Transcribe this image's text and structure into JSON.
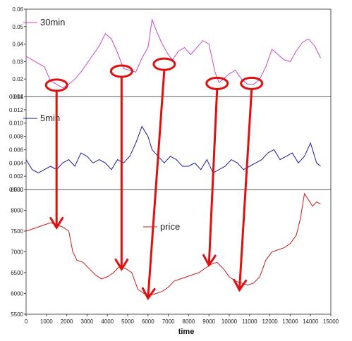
{
  "chart_data": [
    {
      "type": "line",
      "xlim": [
        0,
        15000
      ],
      "ylim": [
        0.01,
        0.06
      ],
      "yticks": [
        "0.01",
        "0.02",
        "0.03",
        "0.04",
        "0.05",
        "0.06"
      ],
      "legend_position": "top-left",
      "series": [
        {
          "name": "30min",
          "color": "#c848c8",
          "points": [
            [
              0,
              0.033
            ],
            [
              300,
              0.031
            ],
            [
              600,
              0.029
            ],
            [
              900,
              0.027
            ],
            [
              1200,
              0.019
            ],
            [
              1500,
              0.017
            ],
            [
              1800,
              0.015
            ],
            [
              2100,
              0.017
            ],
            [
              2400,
              0.02
            ],
            [
              2700,
              0.024
            ],
            [
              3000,
              0.029
            ],
            [
              3300,
              0.034
            ],
            [
              3600,
              0.039
            ],
            [
              3900,
              0.046
            ],
            [
              4200,
              0.043
            ],
            [
              4500,
              0.035
            ],
            [
              4800,
              0.026
            ],
            [
              5100,
              0.025
            ],
            [
              5400,
              0.024
            ],
            [
              5700,
              0.032
            ],
            [
              6000,
              0.038
            ],
            [
              6200,
              0.054
            ],
            [
              6400,
              0.048
            ],
            [
              6700,
              0.04
            ],
            [
              7000,
              0.034
            ],
            [
              7200,
              0.031
            ],
            [
              7500,
              0.036
            ],
            [
              7800,
              0.038
            ],
            [
              8100,
              0.034
            ],
            [
              8400,
              0.038
            ],
            [
              8700,
              0.042
            ],
            [
              9000,
              0.04
            ],
            [
              9300,
              0.024
            ],
            [
              9500,
              0.018
            ],
            [
              9700,
              0.02
            ],
            [
              10000,
              0.023
            ],
            [
              10300,
              0.025
            ],
            [
              10600,
              0.02
            ],
            [
              10900,
              0.017
            ],
            [
              11200,
              0.017
            ],
            [
              11500,
              0.02
            ],
            [
              11800,
              0.027
            ],
            [
              12100,
              0.037
            ],
            [
              12400,
              0.034
            ],
            [
              12700,
              0.031
            ],
            [
              13000,
              0.03
            ],
            [
              13300,
              0.036
            ],
            [
              13600,
              0.041
            ],
            [
              13900,
              0.043
            ],
            [
              14200,
              0.039
            ],
            [
              14500,
              0.032
            ]
          ]
        }
      ]
    },
    {
      "type": "line",
      "xlim": [
        0,
        15000
      ],
      "ylim": [
        0,
        0.014
      ],
      "yticks": [
        "0.000",
        "0.002",
        "0.004",
        "0.006",
        "0.008",
        "0.010",
        "0.012",
        "0.014"
      ],
      "legend_position": "top-left",
      "series": [
        {
          "name": "5min",
          "color": "#1a1aa0",
          "points": [
            [
              0,
              0.0045
            ],
            [
              300,
              0.003
            ],
            [
              600,
              0.0025
            ],
            [
              900,
              0.003
            ],
            [
              1200,
              0.0035
            ],
            [
              1500,
              0.003
            ],
            [
              1800,
              0.004
            ],
            [
              2100,
              0.0045
            ],
            [
              2400,
              0.0035
            ],
            [
              2700,
              0.0055
            ],
            [
              3000,
              0.005
            ],
            [
              3300,
              0.004
            ],
            [
              3600,
              0.0045
            ],
            [
              3900,
              0.004
            ],
            [
              4200,
              0.003
            ],
            [
              4500,
              0.0045
            ],
            [
              4800,
              0.004
            ],
            [
              5100,
              0.005
            ],
            [
              5400,
              0.007
            ],
            [
              5700,
              0.0095
            ],
            [
              6000,
              0.008
            ],
            [
              6200,
              0.006
            ],
            [
              6500,
              0.005
            ],
            [
              6800,
              0.004
            ],
            [
              7100,
              0.005
            ],
            [
              7400,
              0.0045
            ],
            [
              7700,
              0.0035
            ],
            [
              8000,
              0.0035
            ],
            [
              8300,
              0.004
            ],
            [
              8600,
              0.003
            ],
            [
              8900,
              0.0045
            ],
            [
              9200,
              0.0025
            ],
            [
              9500,
              0.003
            ],
            [
              9800,
              0.0035
            ],
            [
              10100,
              0.0045
            ],
            [
              10400,
              0.004
            ],
            [
              10700,
              0.003
            ],
            [
              11000,
              0.0035
            ],
            [
              11300,
              0.004
            ],
            [
              11600,
              0.0045
            ],
            [
              11900,
              0.0055
            ],
            [
              12200,
              0.006
            ],
            [
              12500,
              0.0045
            ],
            [
              12800,
              0.005
            ],
            [
              13100,
              0.0055
            ],
            [
              13400,
              0.004
            ],
            [
              13700,
              0.005
            ],
            [
              14000,
              0.007
            ],
            [
              14300,
              0.004
            ],
            [
              14500,
              0.0035
            ]
          ]
        }
      ]
    },
    {
      "type": "line",
      "xlim": [
        0,
        15000
      ],
      "ylim": [
        5500,
        8500
      ],
      "yticks": [
        "5500",
        "6000",
        "6500",
        "7000",
        "7500",
        "8000",
        "8500"
      ],
      "xticks": [
        "0",
        "1000",
        "2000",
        "3000",
        "4000",
        "5000",
        "6000",
        "7000",
        "8000",
        "9000",
        "10000",
        "11000",
        "12000",
        "13000",
        "14000",
        "15000"
      ],
      "xlabel": "time",
      "legend_position": "center",
      "series": [
        {
          "name": "price",
          "color": "#cc1a1a",
          "points": [
            [
              0,
              7500
            ],
            [
              300,
              7550
            ],
            [
              600,
              7600
            ],
            [
              900,
              7650
            ],
            [
              1200,
              7700
            ],
            [
              1500,
              7650
            ],
            [
              1800,
              7600
            ],
            [
              2100,
              7500
            ],
            [
              2300,
              7000
            ],
            [
              2500,
              6800
            ],
            [
              2800,
              6750
            ],
            [
              3100,
              6600
            ],
            [
              3400,
              6450
            ],
            [
              3700,
              6350
            ],
            [
              4000,
              6400
            ],
            [
              4300,
              6500
            ],
            [
              4600,
              6650
            ],
            [
              4900,
              6600
            ],
            [
              5200,
              6500
            ],
            [
              5500,
              6100
            ],
            [
              5800,
              6000
            ],
            [
              6100,
              5950
            ],
            [
              6400,
              6000
            ],
            [
              6700,
              6050
            ],
            [
              7000,
              6150
            ],
            [
              7300,
              6300
            ],
            [
              7600,
              6350
            ],
            [
              7900,
              6400
            ],
            [
              8200,
              6450
            ],
            [
              8500,
              6500
            ],
            [
              8800,
              6600
            ],
            [
              9100,
              6700
            ],
            [
              9400,
              6750
            ],
            [
              9700,
              6600
            ],
            [
              10000,
              6400
            ],
            [
              10300,
              6300
            ],
            [
              10600,
              6250
            ],
            [
              10900,
              6200
            ],
            [
              11200,
              6250
            ],
            [
              11500,
              6400
            ],
            [
              11800,
              6800
            ],
            [
              12100,
              7000
            ],
            [
              12400,
              7050
            ],
            [
              12700,
              7100
            ],
            [
              13000,
              7200
            ],
            [
              13300,
              7400
            ],
            [
              13500,
              7800
            ],
            [
              13700,
              8400
            ],
            [
              13900,
              8250
            ],
            [
              14100,
              8100
            ],
            [
              14300,
              8200
            ],
            [
              14500,
              8150
            ]
          ]
        }
      ]
    }
  ],
  "annotations": {
    "color": "#e01010",
    "circled_lows": [
      {
        "panel": 0,
        "x": 1500,
        "y": 0.0165
      },
      {
        "panel": 0,
        "x": 4700,
        "y": 0.0245
      },
      {
        "panel": 0,
        "x": 6800,
        "y": 0.0285
      },
      {
        "panel": 0,
        "x": 9400,
        "y": 0.0175
      },
      {
        "panel": 0,
        "x": 11100,
        "y": 0.0175
      }
    ],
    "arrows": [
      {
        "from_x": 1500,
        "to_x": 1500,
        "to_price": 7650
      },
      {
        "from_x": 4700,
        "to_x": 4700,
        "to_price": 6650
      },
      {
        "from_x": 6800,
        "to_x": 6000,
        "to_price": 5950
      },
      {
        "from_x": 9400,
        "to_x": 9000,
        "to_price": 6750
      },
      {
        "from_x": 11100,
        "to_x": 10500,
        "to_price": 6150
      }
    ]
  }
}
